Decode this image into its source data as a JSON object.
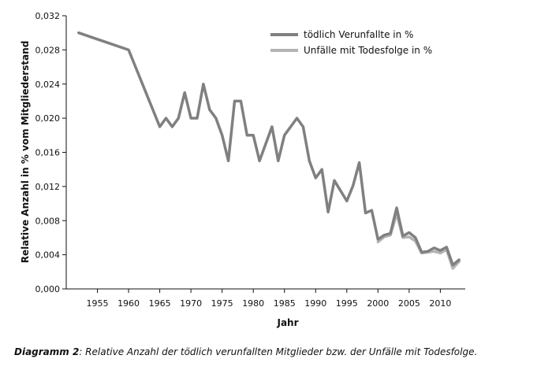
{
  "chart_data": {
    "type": "line",
    "title": "",
    "xlabel": "Jahr",
    "ylabel": "Relative Anzahl in % vom Mitgliederstand",
    "xlim": [
      1950,
      2014
    ],
    "ylim": [
      0,
      0.032
    ],
    "x_ticks": [
      1955,
      1960,
      1965,
      1970,
      1975,
      1980,
      1985,
      1990,
      1995,
      2000,
      2005,
      2010
    ],
    "y_ticks": [
      0,
      0.004,
      0.008,
      0.012,
      0.016,
      0.02,
      0.024,
      0.028,
      0.032
    ],
    "y_tick_labels": [
      "0,000",
      "0,004",
      "0,008",
      "0,012",
      "0,016",
      "0,020",
      "0,024",
      "0,028",
      "0,032"
    ],
    "legend_position": "top-right",
    "grid": false,
    "series": [
      {
        "name": "tödlich Verunfallte in %",
        "color": "#808080",
        "x": [
          1952,
          1960,
          1965,
          1966,
          1967,
          1968,
          1969,
          1970,
          1971,
          1972,
          1973,
          1974,
          1975,
          1976,
          1977,
          1978,
          1979,
          1980,
          1981,
          1983,
          1984,
          1985,
          1986,
          1987,
          1988,
          1989,
          1990,
          1991,
          1992,
          1993,
          1994,
          1995,
          1996,
          1997,
          1998,
          1999,
          2000,
          2001,
          2002,
          2003,
          2004,
          2005,
          2006,
          2007,
          2008,
          2009,
          2010,
          2011,
          2012,
          2013
        ],
        "y": [
          0.03,
          0.028,
          0.019,
          0.02,
          0.019,
          0.02,
          0.023,
          0.02,
          0.02,
          0.024,
          0.021,
          0.02,
          0.018,
          0.015,
          0.022,
          0.022,
          0.018,
          0.018,
          0.015,
          0.019,
          0.015,
          0.018,
          0.019,
          0.02,
          0.019,
          0.015,
          0.013,
          0.014,
          0.009,
          0.0127,
          0.0115,
          0.0103,
          0.0121,
          0.0148,
          0.0089,
          0.0092,
          0.0058,
          0.0063,
          0.0065,
          0.0095,
          0.0062,
          0.0066,
          0.006,
          0.0043,
          0.0044,
          0.0048,
          0.0045,
          0.0049,
          0.0028,
          0.0034
        ]
      },
      {
        "name": "Unfälle mit Todesfolge in %",
        "color": "#b4b4b4",
        "x": [
          2000,
          2001,
          2002,
          2003,
          2004,
          2005,
          2006,
          2007,
          2008,
          2009,
          2010,
          2011,
          2012,
          2013
        ],
        "y": [
          0.0055,
          0.0061,
          0.0063,
          0.0088,
          0.006,
          0.0061,
          0.0056,
          0.0042,
          0.0043,
          0.0044,
          0.0042,
          0.0046,
          0.0024,
          0.0032
        ]
      }
    ]
  },
  "caption": {
    "label": "Diagramm 2",
    "text": ": Relative Anzahl der tödlich verunfallten Mitglieder bzw. der Unfälle mit Todesfolge."
  }
}
